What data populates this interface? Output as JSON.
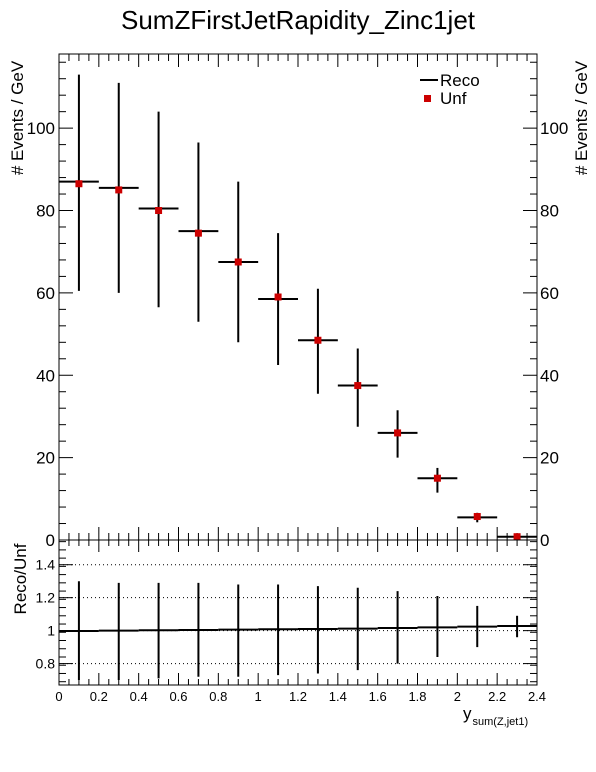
{
  "title": "SumZFirstJetRapidity_Zinc1jet",
  "legend": {
    "reco_label": "Reco",
    "unf_label": "Unf"
  },
  "colors": {
    "unf_marker": "#cc0000",
    "reco_line": "#000000"
  },
  "chart_data": [
    {
      "type": "scatter",
      "panel": "top",
      "ylabel": "# Events / GeV",
      "ylim": [
        0,
        118
      ],
      "yticks": [
        0,
        20,
        40,
        60,
        80,
        100
      ],
      "xlim": [
        0,
        2.4
      ],
      "bin_width": 0.2,
      "legend_placement": "top-right",
      "series": [
        {
          "name": "Reco",
          "x": [
            0.1,
            0.3,
            0.5,
            0.7,
            0.9,
            1.1,
            1.3,
            1.5,
            1.7,
            1.9,
            2.1,
            2.3
          ],
          "y": [
            87,
            85.5,
            80.5,
            75,
            67.5,
            58.5,
            48.5,
            37.5,
            26,
            15,
            5.5,
            0.8
          ]
        },
        {
          "name": "Unf",
          "x": [
            0.1,
            0.3,
            0.5,
            0.7,
            0.9,
            1.1,
            1.3,
            1.5,
            1.7,
            1.9,
            2.1,
            2.3
          ],
          "y": [
            86.5,
            85,
            80,
            74.5,
            67.5,
            59,
            48.5,
            37.5,
            26,
            15,
            5.7,
            0.8
          ],
          "yerr_low": [
            60.5,
            60,
            56.5,
            53,
            48,
            42.5,
            35.5,
            27.5,
            20,
            11.5,
            4.3,
            0.4
          ],
          "yerr_high": [
            113,
            111,
            104,
            96.5,
            87,
            74.5,
            61,
            46.5,
            31.5,
            17.5,
            6.6,
            1.2
          ]
        }
      ]
    },
    {
      "type": "scatter",
      "panel": "bottom",
      "ylabel": "Reco/Unf",
      "xlabel_main": "y",
      "xlabel_sub": "sum(Z,jet1)",
      "ylim": [
        0.67,
        1.55
      ],
      "yticks": [
        0.8,
        1,
        1.2,
        1.4
      ],
      "ytick_labels": [
        "0.8",
        "1",
        "1.2",
        "1.4"
      ],
      "xlim": [
        0,
        2.4
      ],
      "xticks": [
        0,
        0.2,
        0.4,
        0.6,
        0.8,
        1,
        1.2,
        1.4,
        1.6,
        1.8,
        2,
        2.2,
        2.4
      ],
      "xtick_labels": [
        "0",
        "0.2",
        "0.4",
        "0.6",
        "0.8",
        "1",
        "1.2",
        "1.4",
        "1.6",
        "1.8",
        "2",
        "2.2",
        "2.4"
      ],
      "grid_lines_y": [
        0.8,
        1.0,
        1.2,
        1.4
      ],
      "grid": "dotted-horizontal",
      "x": [
        0.1,
        0.3,
        0.5,
        0.7,
        0.9,
        1.1,
        1.3,
        1.5,
        1.7,
        1.9,
        2.1,
        2.3
      ],
      "y": [
        0.998,
        1.0,
        1.002,
        1.004,
        1.006,
        1.008,
        1.01,
        1.012,
        1.016,
        1.02,
        1.024,
        1.028
      ],
      "yerr_low": [
        0.7,
        0.7,
        0.71,
        0.72,
        0.72,
        0.73,
        0.74,
        0.76,
        0.8,
        0.84,
        0.9,
        0.96
      ],
      "yerr_high": [
        1.3,
        1.29,
        1.29,
        1.29,
        1.28,
        1.28,
        1.27,
        1.26,
        1.24,
        1.21,
        1.15,
        1.09
      ]
    }
  ]
}
